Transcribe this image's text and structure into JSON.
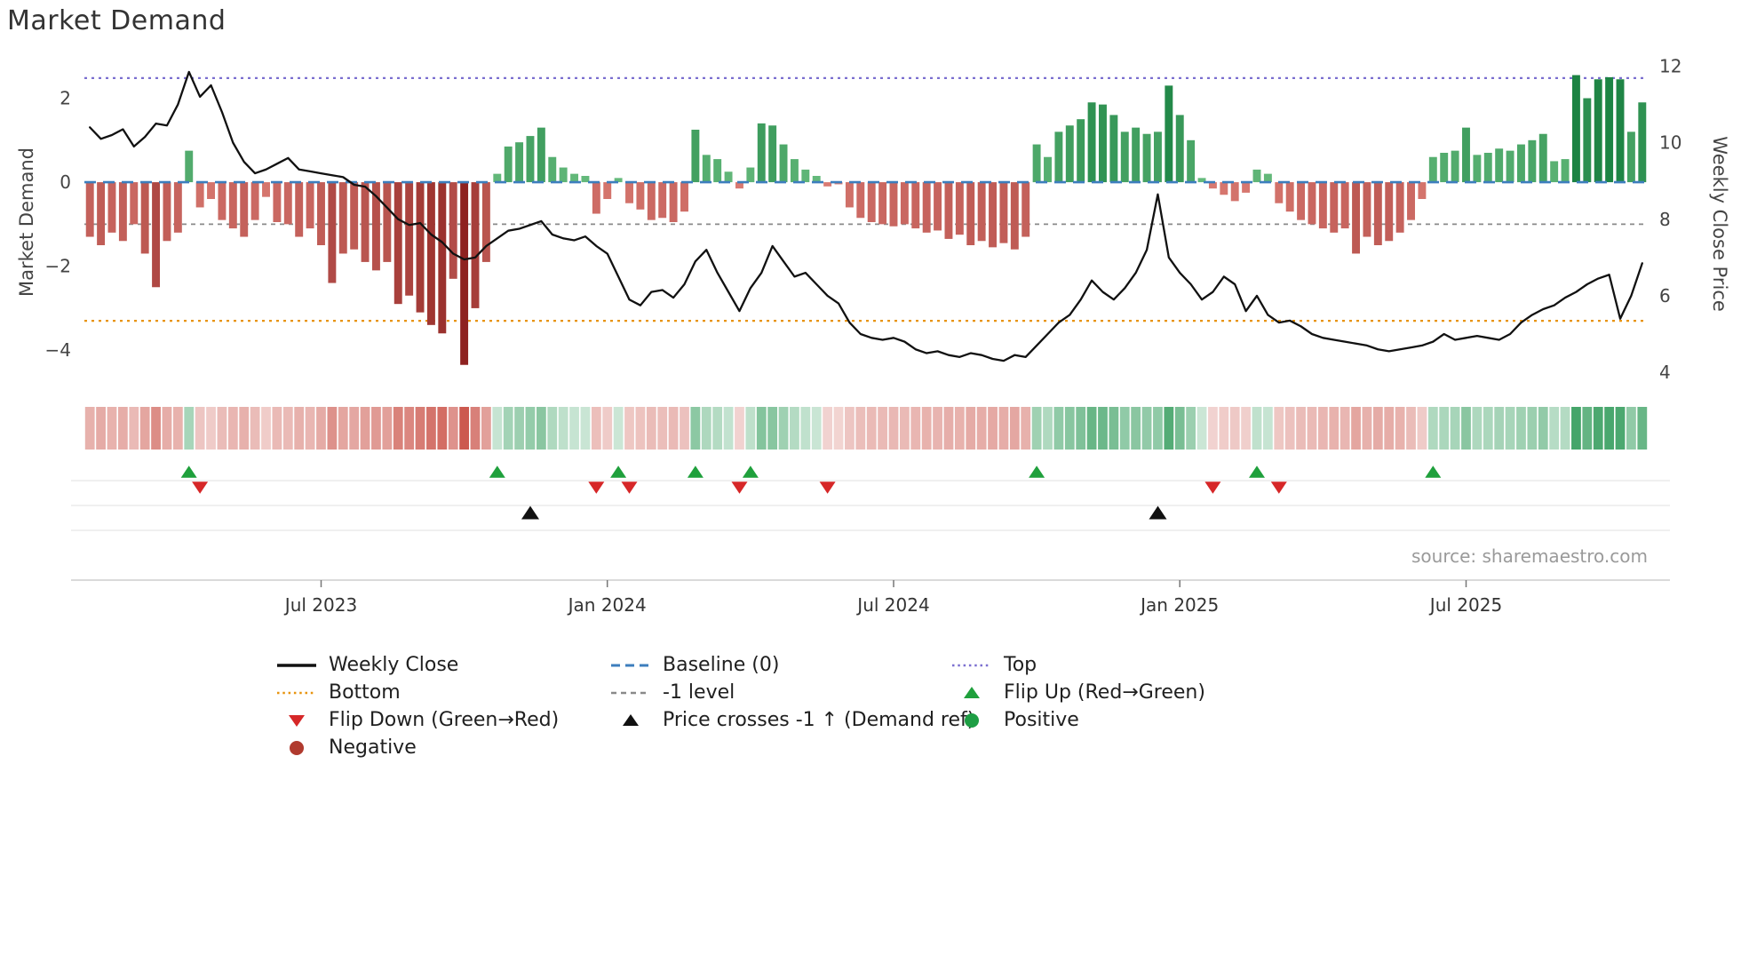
{
  "source_text": "source: sharemaestro.com",
  "chart_data": {
    "type": "bar+line",
    "title": "Market Demand",
    "x_axis": {
      "frequency": "weekly",
      "start_date": "2023-02-06",
      "tick_labels": [
        "Jul 2023",
        "Jan 2024",
        "Jul 2024",
        "Jan 2025",
        "Jul 2025"
      ],
      "tick_indices": [
        21,
        47,
        73,
        99,
        125
      ]
    },
    "y_left": {
      "label": "Market Demand",
      "ticks": [
        2,
        0,
        -2,
        -4
      ],
      "ylim": [
        -4.8,
        2.9
      ]
    },
    "y_right": {
      "label": "Weekly Close Price",
      "ticks": [
        12,
        10,
        8,
        6,
        4
      ],
      "ylim": [
        3.7,
        12.15
      ]
    },
    "levels": {
      "baseline": 0,
      "top": 2.48,
      "bottom": -3.3,
      "minus_one": -1
    },
    "series": [
      {
        "name": "Market Demand",
        "type": "bar",
        "values": [
          -1.3,
          -1.5,
          -1.2,
          -1.4,
          -1.0,
          -1.7,
          -2.5,
          -1.4,
          -1.2,
          0.75,
          -0.6,
          -0.4,
          -0.9,
          -1.1,
          -1.3,
          -0.9,
          -0.35,
          -0.95,
          -1.0,
          -1.3,
          -1.1,
          -1.5,
          -2.4,
          -1.7,
          -1.6,
          -1.9,
          -2.1,
          -1.9,
          -2.9,
          -2.7,
          -3.1,
          -3.4,
          -3.6,
          -2.3,
          -4.35,
          -3.0,
          -1.9,
          0.2,
          0.85,
          0.95,
          1.1,
          1.3,
          0.6,
          0.35,
          0.2,
          0.15,
          -0.75,
          -0.4,
          0.1,
          -0.5,
          -0.65,
          -0.9,
          -0.85,
          -0.95,
          -0.7,
          1.25,
          0.65,
          0.55,
          0.25,
          -0.15,
          0.35,
          1.4,
          1.35,
          0.9,
          0.55,
          0.3,
          0.15,
          -0.1,
          -0.05,
          -0.6,
          -0.85,
          -0.95,
          -1.0,
          -1.05,
          -1.0,
          -1.1,
          -1.2,
          -1.15,
          -1.35,
          -1.25,
          -1.5,
          -1.4,
          -1.55,
          -1.45,
          -1.6,
          -1.3,
          0.9,
          0.6,
          1.2,
          1.35,
          1.5,
          1.9,
          1.85,
          1.6,
          1.2,
          1.3,
          1.15,
          1.2,
          2.3,
          1.6,
          1.0,
          0.1,
          -0.15,
          -0.3,
          -0.45,
          -0.25,
          0.3,
          0.2,
          -0.5,
          -0.7,
          -0.9,
          -1.0,
          -1.1,
          -1.2,
          -1.1,
          -1.7,
          -1.3,
          -1.5,
          -1.4,
          -1.2,
          -0.9,
          -0.4,
          0.6,
          0.7,
          0.75,
          1.3,
          0.65,
          0.7,
          0.8,
          0.75,
          0.9,
          1.0,
          1.15,
          0.5,
          0.55,
          2.55,
          2.0,
          2.45,
          2.5,
          2.45,
          1.2,
          1.9
        ]
      },
      {
        "name": "Weekly Close",
        "type": "line",
        "values": [
          10.4,
          10.1,
          10.2,
          10.35,
          9.9,
          10.15,
          10.5,
          10.45,
          11.0,
          11.85,
          11.2,
          11.5,
          10.8,
          10.0,
          9.5,
          9.2,
          9.3,
          9.45,
          9.6,
          9.3,
          9.25,
          9.2,
          9.15,
          9.1,
          8.9,
          8.85,
          8.6,
          8.3,
          8.0,
          7.85,
          7.9,
          7.6,
          7.4,
          7.1,
          6.95,
          7.0,
          7.3,
          7.5,
          7.7,
          7.75,
          7.85,
          7.95,
          7.6,
          7.5,
          7.45,
          7.55,
          7.3,
          7.1,
          6.5,
          5.9,
          5.75,
          6.1,
          6.15,
          5.95,
          6.3,
          6.9,
          7.2,
          6.6,
          6.1,
          5.6,
          6.2,
          6.6,
          7.3,
          6.9,
          6.5,
          6.6,
          6.3,
          6.0,
          5.8,
          5.3,
          5.0,
          4.9,
          4.85,
          4.9,
          4.8,
          4.6,
          4.5,
          4.55,
          4.45,
          4.4,
          4.5,
          4.45,
          4.35,
          4.3,
          4.45,
          4.4,
          4.7,
          5.0,
          5.3,
          5.5,
          5.9,
          6.4,
          6.1,
          5.9,
          6.2,
          6.6,
          7.2,
          8.65,
          7.0,
          6.6,
          6.3,
          5.9,
          6.1,
          6.5,
          6.3,
          5.6,
          6.0,
          5.5,
          5.3,
          5.35,
          5.2,
          5.0,
          4.9,
          4.85,
          4.8,
          4.75,
          4.7,
          4.6,
          4.55,
          4.6,
          4.65,
          4.7,
          4.8,
          5.0,
          4.85,
          4.9,
          4.95,
          4.9,
          4.85,
          5.0,
          5.3,
          5.5,
          5.65,
          5.75,
          5.95,
          6.1,
          6.3,
          6.45,
          6.55,
          5.4,
          6.0,
          6.85
        ]
      }
    ],
    "markers": {
      "flip_up_indices": [
        9,
        37,
        48,
        55,
        60,
        86,
        106,
        122
      ],
      "flip_down_indices": [
        10,
        46,
        49,
        59,
        67,
        102,
        108
      ],
      "price_cross_up_indices": [
        40,
        97
      ]
    },
    "colors": {
      "line": "#111111",
      "baseline": "#3d7ebd",
      "top": "#7b6fd0",
      "bottom": "#e8940f",
      "minus_one": "#8a8a8a",
      "bar_negative_light": "#db7c74",
      "bar_negative_deep": "#8d211f",
      "bar_positive_light": "#68bc7e",
      "bar_positive_deep": "#1a8242",
      "heatmap_negative": "#c64439",
      "heatmap_positive": "#2e9a58",
      "flip_up": "#1fa03c",
      "flip_down": "#d62728",
      "price_cross": "#111111"
    }
  },
  "legend": {
    "columns": [
      {
        "items": [
          {
            "swatch": "solid-line",
            "color": "#111111",
            "label": "Weekly Close"
          },
          {
            "swatch": "dotted-line",
            "color": "#e8940f",
            "label": "Bottom"
          },
          {
            "swatch": "triangle-down",
            "color": "#d62728",
            "label": "Flip Down (Green→Red)"
          },
          {
            "swatch": "circle",
            "color": "#b03a2e",
            "label": "Negative"
          }
        ]
      },
      {
        "items": [
          {
            "swatch": "dashed-line",
            "color": "#3d7ebd",
            "label": "Baseline (0)"
          },
          {
            "swatch": "small-dashed-line",
            "color": "#8a8a8a",
            "label": "-1 level"
          },
          {
            "swatch": "triangle-up",
            "color": "#111111",
            "label": "Price crosses -1 ↑ (Demand ref)"
          }
        ]
      },
      {
        "items": [
          {
            "swatch": "dotted-line",
            "color": "#7b6fd0",
            "label": "Top"
          },
          {
            "swatch": "triangle-up",
            "color": "#1fa03c",
            "label": "Flip Up (Red→Green)"
          },
          {
            "swatch": "circle",
            "color": "#1e9e44",
            "label": "Positive"
          }
        ]
      }
    ]
  }
}
